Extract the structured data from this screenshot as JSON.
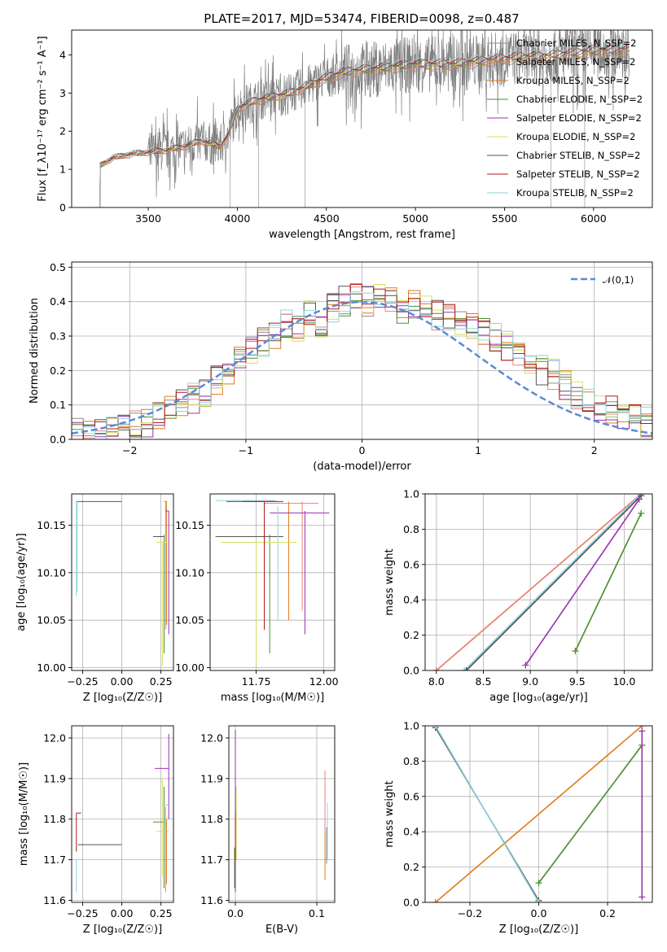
{
  "figure_title": "PLATE=2017, MJD=53474, FIBERID=0098, z=0.487",
  "colors": {
    "Chabrier MILES": "#8c8c8c",
    "Salpeter MILES": "#e8837a",
    "Kroupa MILES": "#e07b1a",
    "Chabrier ELODIE": "#4a8f3a",
    "Salpeter ELODIE": "#9b30b0",
    "Kroupa ELODIE": "#d8e060",
    "Chabrier STELIB": "#555555",
    "Salpeter STELIB": "#b01818",
    "Kroupa STELIB": "#8fd3e0",
    "gauss": "#5b8ad6"
  },
  "chart_data": [
    {
      "id": "spectrum",
      "type": "line",
      "xlabel": "wavelength [Angstrom, rest frame]",
      "ylabel": "Flux [f_λ10⁻¹⁷ erg cm⁻² s⁻¹ A⁻¹]",
      "xlim": [
        3070,
        6330
      ],
      "ylim": [
        0,
        4.65
      ],
      "xticks": [
        3500,
        4000,
        4500,
        5000,
        5500,
        6000
      ],
      "yticks": [
        0,
        1,
        2,
        3,
        4
      ],
      "grid": false,
      "legend": "top-right",
      "legend_entries": [
        "Chabrier MILES, N_SSP=2",
        "Salpeter MILES, N_SSP=2",
        "Kroupa MILES, N_SSP=2",
        "Chabrier ELODIE, N_SSP=2",
        "Salpeter ELODIE, N_SSP=2",
        "Kroupa ELODIE, N_SSP=2",
        "Chabrier STELIB, N_SSP=2",
        "Salpeter STELIB, N_SSP=2",
        "Kroupa STELIB, N_SSP=2"
      ],
      "model_continuum": {
        "x": [
          3230,
          3300,
          3400,
          3500,
          3600,
          3700,
          3800,
          3900,
          3950,
          4000,
          4100,
          4200,
          4300,
          4400,
          4500,
          4600,
          4700,
          4800,
          4900,
          5000,
          5100,
          5200,
          5300,
          5400,
          5500,
          5600,
          5700,
          5800,
          5900,
          6000,
          6100,
          6200
        ],
        "y": [
          1.1,
          1.3,
          1.4,
          1.45,
          1.5,
          1.6,
          1.75,
          1.6,
          1.9,
          2.6,
          2.8,
          2.9,
          3.0,
          3.2,
          3.4,
          3.55,
          3.6,
          3.65,
          3.7,
          3.75,
          3.75,
          3.75,
          3.8,
          3.85,
          3.9,
          3.95,
          3.95,
          4.0,
          4.05,
          4.1,
          4.1,
          4.15
        ]
      }
    },
    {
      "id": "residuals",
      "type": "bar",
      "xlabel": "(data-model)/error",
      "ylabel": "Normed distribution",
      "xlim": [
        -2.5,
        2.5
      ],
      "ylim": [
        0,
        0.515
      ],
      "xticks": [
        -2,
        -1,
        0,
        1,
        2
      ],
      "yticks": [
        0.0,
        0.1,
        0.2,
        0.3,
        0.4,
        0.5
      ],
      "grid": true,
      "legend": "top-right",
      "legend_entries": [
        "𝒩(0,1)"
      ],
      "bin_width": 0.1,
      "bin_centers": [
        -2.45,
        -2.35,
        -2.25,
        -2.15,
        -2.05,
        -1.95,
        -1.85,
        -1.75,
        -1.65,
        -1.55,
        -1.45,
        -1.35,
        -1.25,
        -1.15,
        -1.05,
        -0.95,
        -0.85,
        -0.75,
        -0.65,
        -0.55,
        -0.45,
        -0.35,
        -0.25,
        -0.15,
        -0.05,
        0.05,
        0.15,
        0.25,
        0.35,
        0.45,
        0.55,
        0.65,
        0.75,
        0.85,
        0.95,
        1.05,
        1.15,
        1.25,
        1.35,
        1.45,
        1.55,
        1.65,
        1.75,
        1.85,
        1.95,
        2.05,
        2.15,
        2.25,
        2.35,
        2.45
      ],
      "histogram_envelope": [
        0.02,
        0.02,
        0.02,
        0.03,
        0.03,
        0.04,
        0.05,
        0.07,
        0.09,
        0.11,
        0.12,
        0.14,
        0.17,
        0.2,
        0.23,
        0.26,
        0.28,
        0.3,
        0.34,
        0.33,
        0.36,
        0.34,
        0.38,
        0.4,
        0.42,
        0.4,
        0.41,
        0.4,
        0.38,
        0.39,
        0.38,
        0.36,
        0.36,
        0.34,
        0.33,
        0.31,
        0.3,
        0.27,
        0.24,
        0.22,
        0.2,
        0.19,
        0.16,
        0.13,
        0.12,
        0.1,
        0.09,
        0.07,
        0.06,
        0.05
      ]
    },
    {
      "id": "age_vs_Z",
      "type": "scatter",
      "xlabel": "Z [log₁₀(Z/Z☉)]",
      "ylabel": "age  [log₁₀(age/yr)]",
      "xlim": [
        -0.32,
        0.33
      ],
      "ylim": [
        9.997,
        10.183
      ],
      "xticks": [
        -0.25,
        0.0,
        0.25
      ],
      "yticks": [
        10.0,
        10.05,
        10.1,
        10.15
      ],
      "grid": true
    },
    {
      "id": "age_vs_mass",
      "type": "scatter",
      "xlabel": "mass [log₁₀(M/M☉)]",
      "ylabel": "",
      "xlim": [
        11.58,
        12.04
      ],
      "ylim": [
        9.997,
        10.183
      ],
      "xticks": [
        11.75,
        12.0
      ],
      "yticks": [
        10.0,
        10.05,
        10.1,
        10.15
      ],
      "grid": true
    },
    {
      "id": "weight_vs_age",
      "type": "line",
      "xlabel": "age  [log₁₀(age/yr)]",
      "ylabel": "mass weight",
      "xlim": [
        7.88,
        10.3
      ],
      "ylim": [
        0,
        1
      ],
      "xticks": [
        8.0,
        8.5,
        9.0,
        9.5,
        10.0
      ],
      "yticks": [
        0.0,
        0.2,
        0.4,
        0.6,
        0.8,
        1.0
      ],
      "grid": true,
      "series": [
        {
          "lib": "Kroupa MILES",
          "x": [
            8.0,
            10.18
          ],
          "y": [
            0.0,
            1.0
          ]
        },
        {
          "lib": "Salpeter MILES",
          "x": [
            8.0,
            10.18
          ],
          "y": [
            0.0,
            1.0
          ]
        },
        {
          "lib": "Chabrier MILES",
          "x": [
            8.3,
            10.18
          ],
          "y": [
            0.0,
            1.0
          ]
        },
        {
          "lib": "Kroupa STELIB",
          "x": [
            8.3,
            10.18
          ],
          "y": [
            0.0,
            1.0
          ]
        },
        {
          "lib": "Chabrier STELIB",
          "x": [
            8.32,
            10.18
          ],
          "y": [
            0.0,
            0.99
          ]
        },
        {
          "lib": "Salpeter ELODIE",
          "x": [
            8.95,
            10.16
          ],
          "y": [
            0.03,
            0.97
          ]
        },
        {
          "lib": "Kroupa ELODIE",
          "x": [
            9.48,
            10.18
          ],
          "y": [
            0.11,
            0.89
          ]
        },
        {
          "lib": "Chabrier ELODIE",
          "x": [
            9.48,
            10.18
          ],
          "y": [
            0.11,
            0.89
          ]
        }
      ]
    },
    {
      "id": "mass_vs_Z",
      "type": "scatter",
      "xlabel": "Z [log₁₀(Z/Z☉)]",
      "ylabel": "mass [log₁₀(M/M☉)]",
      "xlim": [
        -0.32,
        0.33
      ],
      "ylim": [
        11.595,
        12.03
      ],
      "xticks": [
        -0.25,
        0.0,
        0.25
      ],
      "yticks": [
        11.6,
        11.7,
        11.8,
        11.9,
        12.0
      ],
      "grid": true
    },
    {
      "id": "mass_vs_EBV",
      "type": "scatter",
      "xlabel": "E(B-V)",
      "ylabel": "",
      "xlim": [
        -0.008,
        0.122
      ],
      "ylim": [
        11.595,
        12.03
      ],
      "xticks": [
        0.0,
        0.1
      ],
      "yticks": [
        11.6,
        11.7,
        11.8,
        11.9,
        12.0
      ],
      "grid": true
    },
    {
      "id": "weight_vs_Z",
      "type": "line",
      "xlabel": "Z [log₁₀(Z/Z☉)]",
      "ylabel": "mass weight",
      "xlim": [
        -0.33,
        0.33
      ],
      "ylim": [
        0,
        1
      ],
      "xticks": [
        -0.2,
        0.0,
        0.2
      ],
      "yticks": [
        0.0,
        0.2,
        0.4,
        0.6,
        0.8,
        1.0
      ],
      "grid": true,
      "series": [
        {
          "lib": "Kroupa MILES",
          "x": [
            -0.3,
            0.3
          ],
          "y": [
            0.0,
            1.0
          ]
        },
        {
          "lib": "Chabrier STELIB",
          "x": [
            -0.3,
            0.0
          ],
          "y": [
            0.99,
            0.01
          ]
        },
        {
          "lib": "Kroupa STELIB",
          "x": [
            -0.3,
            0.0
          ],
          "y": [
            1.0,
            0.0
          ]
        },
        {
          "lib": "Kroupa ELODIE",
          "x": [
            0.0,
            0.3
          ],
          "y": [
            0.11,
            0.89
          ]
        },
        {
          "lib": "Chabrier ELODIE",
          "x": [
            0.0,
            0.3
          ],
          "y": [
            0.11,
            0.89
          ]
        },
        {
          "lib": "Salpeter ELODIE",
          "x": [
            0.3,
            0.3
          ],
          "y": [
            0.03,
            0.97
          ]
        }
      ]
    }
  ]
}
